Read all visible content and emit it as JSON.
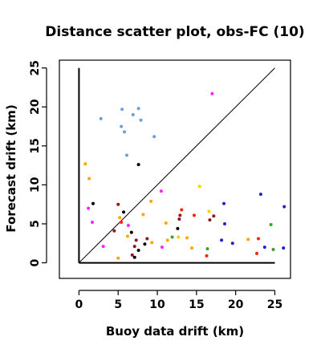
{
  "chart_data": {
    "type": "scatter",
    "title": "Distance scatter plot, obs-FC (10)",
    "xlabel": "Buoy data drift (km)",
    "ylabel": "Forecast drift (km)",
    "xlim": [
      -2.5,
      27
    ],
    "ylim": [
      -2,
      26
    ],
    "xticks": [
      "0",
      "5",
      "10",
      "15",
      "20",
      "25"
    ],
    "yticks": [
      "0",
      "5",
      "10",
      "15",
      "20",
      "25"
    ],
    "grid": false,
    "legend": "none",
    "reference_lines": [
      "identity diagonal y = x from 0 to 25",
      "vertical line at x = 0 from 0 to 25",
      "horizontal line at y = 0 from 0 to 25"
    ],
    "points": [
      {
        "x": 2.8,
        "y": 18.5,
        "color": "#6a9fd8"
      },
      {
        "x": 5.5,
        "y": 19.7,
        "color": "#6a9fd8"
      },
      {
        "x": 7.6,
        "y": 19.8,
        "color": "#6a9fd8"
      },
      {
        "x": 6.9,
        "y": 19.0,
        "color": "#6a9fd8"
      },
      {
        "x": 7.9,
        "y": 18.3,
        "color": "#6a9fd8"
      },
      {
        "x": 5.4,
        "y": 17.5,
        "color": "#6a9fd8"
      },
      {
        "x": 5.8,
        "y": 16.8,
        "color": "#6a9fd8"
      },
      {
        "x": 9.6,
        "y": 16.2,
        "color": "#6a9fd8"
      },
      {
        "x": 6.1,
        "y": 13.8,
        "color": "#6a9fd8"
      },
      {
        "x": 17.0,
        "y": 21.7,
        "color": "#ff22ff"
      },
      {
        "x": 7.6,
        "y": 12.6,
        "color": "#000000"
      },
      {
        "x": 0.8,
        "y": 12.7,
        "color": "#ffa500"
      },
      {
        "x": 1.3,
        "y": 10.8,
        "color": "#ffa500"
      },
      {
        "x": 10.5,
        "y": 9.2,
        "color": "#ff22ff"
      },
      {
        "x": 15.4,
        "y": 9.8,
        "color": "#f2d400"
      },
      {
        "x": 23.2,
        "y": 8.8,
        "color": "#1f1fd6"
      },
      {
        "x": 9.2,
        "y": 7.9,
        "color": "#ffa500"
      },
      {
        "x": 1.8,
        "y": 7.6,
        "color": "#000000"
      },
      {
        "x": 5.0,
        "y": 7.5,
        "color": "#8b1a1a"
      },
      {
        "x": 18.5,
        "y": 7.6,
        "color": "#1f1fd6"
      },
      {
        "x": 26.2,
        "y": 7.2,
        "color": "#1f1fd6"
      },
      {
        "x": 1.2,
        "y": 7.0,
        "color": "#ff22ff"
      },
      {
        "x": 13.1,
        "y": 6.8,
        "color": "#ff2200"
      },
      {
        "x": 16.6,
        "y": 6.6,
        "color": "#f2d400"
      },
      {
        "x": 5.7,
        "y": 6.5,
        "color": "#000000"
      },
      {
        "x": 8.2,
        "y": 6.2,
        "color": "#ffa500"
      },
      {
        "x": 12.9,
        "y": 6.1,
        "color": "#8b1a1a"
      },
      {
        "x": 14.7,
        "y": 6.1,
        "color": "#ff2200"
      },
      {
        "x": 17.2,
        "y": 6.0,
        "color": "#8b1a1a"
      },
      {
        "x": 5.2,
        "y": 5.8,
        "color": "#ffa500"
      },
      {
        "x": 12.8,
        "y": 5.6,
        "color": "#8b1a1a"
      },
      {
        "x": 16.7,
        "y": 5.5,
        "color": "#8b1a1a"
      },
      {
        "x": 1.7,
        "y": 5.2,
        "color": "#ff22ff"
      },
      {
        "x": 5.4,
        "y": 5.2,
        "color": "#ff2200"
      },
      {
        "x": 11.1,
        "y": 5.1,
        "color": "#ffa500"
      },
      {
        "x": 18.6,
        "y": 5.0,
        "color": "#1f1fd6"
      },
      {
        "x": 24.5,
        "y": 4.9,
        "color": "#3aa02a"
      },
      {
        "x": 6.3,
        "y": 4.8,
        "color": "#ff22ff"
      },
      {
        "x": 12.6,
        "y": 4.4,
        "color": "#000000"
      },
      {
        "x": 6.7,
        "y": 3.9,
        "color": "#000000"
      },
      {
        "x": 4.5,
        "y": 4.1,
        "color": "#8b1a1a"
      },
      {
        "x": 6.2,
        "y": 3.4,
        "color": "#ffa500"
      },
      {
        "x": 12.7,
        "y": 3.3,
        "color": "#f2d400"
      },
      {
        "x": 13.8,
        "y": 3.2,
        "color": "#ffa500"
      },
      {
        "x": 11.9,
        "y": 3.3,
        "color": "#3aa02a"
      },
      {
        "x": 11.3,
        "y": 2.9,
        "color": "#ffa500"
      },
      {
        "x": 8.7,
        "y": 3.1,
        "color": "#8b1a1a"
      },
      {
        "x": 7.3,
        "y": 2.9,
        "color": "#8b1a1a"
      },
      {
        "x": 9.3,
        "y": 2.6,
        "color": "#ffa500"
      },
      {
        "x": 18.2,
        "y": 2.9,
        "color": "#1f1fd6"
      },
      {
        "x": 19.6,
        "y": 2.5,
        "color": "#1f1fd6"
      },
      {
        "x": 21.6,
        "y": 3.0,
        "color": "#ffa500"
      },
      {
        "x": 22.9,
        "y": 3.1,
        "color": "#ff2200"
      },
      {
        "x": 23.7,
        "y": 2.0,
        "color": "#1f1fd6"
      },
      {
        "x": 26.1,
        "y": 1.9,
        "color": "#1f1fd6"
      },
      {
        "x": 8.4,
        "y": 2.4,
        "color": "#000000"
      },
      {
        "x": 3.1,
        "y": 2.1,
        "color": "#ff22ff"
      },
      {
        "x": 10.6,
        "y": 2.0,
        "color": "#ff22ff"
      },
      {
        "x": 14.4,
        "y": 1.9,
        "color": "#ffa500"
      },
      {
        "x": 16.4,
        "y": 1.8,
        "color": "#3aa02a"
      },
      {
        "x": 24.8,
        "y": 1.7,
        "color": "#3aa02a"
      },
      {
        "x": 7.1,
        "y": 2.1,
        "color": "#8b1a1a"
      },
      {
        "x": 7.6,
        "y": 1.6,
        "color": "#000000"
      },
      {
        "x": 6.8,
        "y": 1.0,
        "color": "#8b1a1a"
      },
      {
        "x": 7.1,
        "y": 0.7,
        "color": "#000000"
      },
      {
        "x": 5.0,
        "y": 0.6,
        "color": "#ffa500"
      },
      {
        "x": 16.3,
        "y": 0.9,
        "color": "#ff2200"
      },
      {
        "x": 22.7,
        "y": 1.2,
        "color": "#ff2200"
      }
    ]
  }
}
